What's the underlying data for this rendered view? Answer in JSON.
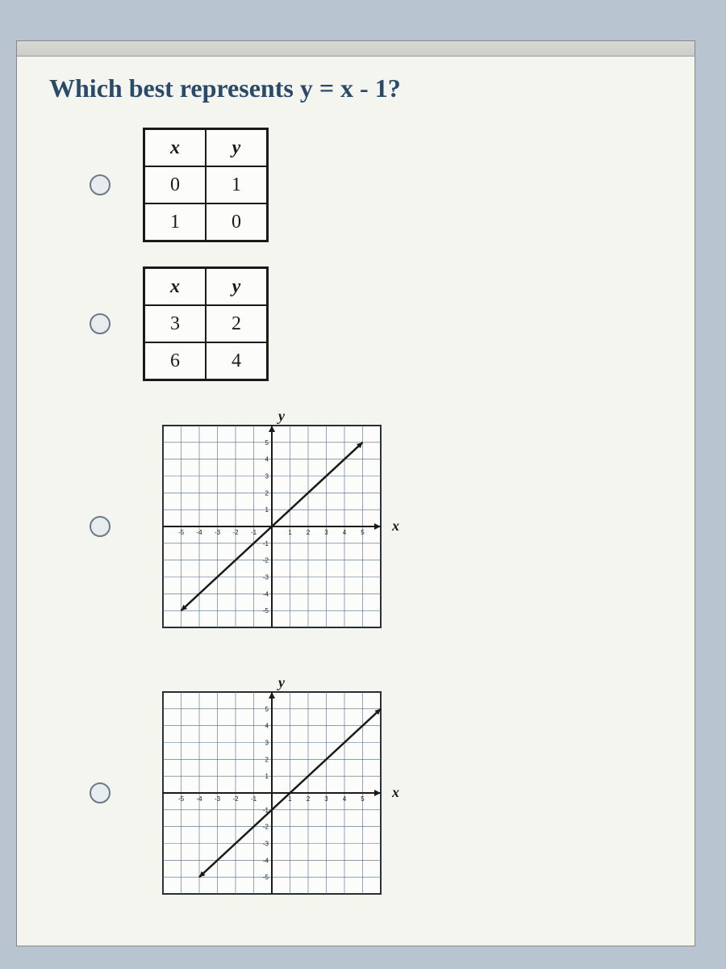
{
  "question": {
    "text": "Which best represents y = x - 1?"
  },
  "options": [
    {
      "type": "table",
      "columns": [
        "x",
        "y"
      ],
      "rows": [
        [
          "0",
          "1"
        ],
        [
          "1",
          "0"
        ]
      ]
    },
    {
      "type": "table",
      "columns": [
        "x",
        "y"
      ],
      "rows": [
        [
          "3",
          "2"
        ],
        [
          "6",
          "4"
        ]
      ]
    },
    {
      "type": "line_graph",
      "x_label": "x",
      "y_label": "y",
      "xlim": [
        -6,
        6
      ],
      "ylim": [
        -6,
        6
      ],
      "xtick_step": 1,
      "ytick_step": 1,
      "grid_color": "#4a6a8a",
      "axis_color": "#1a1a1a",
      "background_color": "#fcfcfa",
      "line_color": "#1a1a1a",
      "line_width": 2.5,
      "points": [
        [
          -5,
          -5
        ],
        [
          5,
          5
        ]
      ],
      "y_intercept": 0,
      "slope": 1
    },
    {
      "type": "line_graph",
      "x_label": "x",
      "y_label": "y",
      "xlim": [
        -6,
        6
      ],
      "ylim": [
        -6,
        6
      ],
      "xtick_step": 1,
      "ytick_step": 1,
      "grid_color": "#4a6a8a",
      "axis_color": "#1a1a1a",
      "background_color": "#fcfcfa",
      "line_color": "#1a1a1a",
      "line_width": 2.5,
      "points": [
        [
          -4,
          -5
        ],
        [
          6,
          5
        ]
      ],
      "y_intercept": -1,
      "slope": 1
    }
  ],
  "colors": {
    "page_bg": "#b8c4d0",
    "panel_bg": "#f5f5f0",
    "question_text": "#2a4a6a"
  }
}
